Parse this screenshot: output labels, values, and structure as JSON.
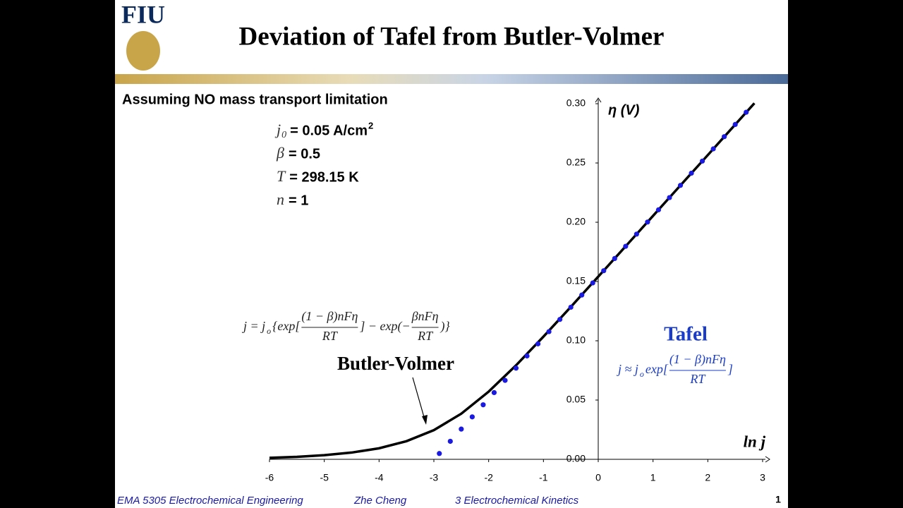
{
  "header": {
    "logo": "FIU",
    "title": "Deviation of Tafel from Butler-Volmer"
  },
  "subtitle": "Assuming NO mass transport limitation",
  "parameters": [
    {
      "symbol": "j",
      "sub": "0",
      "value": "= 0.05 A/cm",
      "sup": "2"
    },
    {
      "symbol": "β",
      "value": "= 0.5"
    },
    {
      "symbol": "T",
      "value": "= 298.15 K"
    },
    {
      "symbol": "n",
      "value": "= 1"
    }
  ],
  "chart_data": {
    "type": "line",
    "x_label": "ln j",
    "y_label": "η (V)",
    "xlim": [
      -6,
      3
    ],
    "ylim": [
      0,
      0.3
    ],
    "xticks": [
      -6,
      -5,
      -4,
      -3,
      -2,
      -1,
      0,
      1,
      2,
      3
    ],
    "yticks": [
      {
        "value": 0,
        "label": "0.00"
      },
      {
        "value": 0.05,
        "label": "0.05"
      },
      {
        "value": 0.1,
        "label": "0.10"
      },
      {
        "value": 0.15,
        "label": "0.15"
      },
      {
        "value": 0.2,
        "label": "0.20"
      },
      {
        "value": 0.25,
        "label": "0.25"
      },
      {
        "value": 0.3,
        "label": "0.30"
      }
    ],
    "series": [
      {
        "name": "Butler-Volmer",
        "color": "#000000",
        "style": "line",
        "x": [
          -6,
          -5.5,
          -5,
          -4.5,
          -4,
          -3.5,
          -3,
          -2.5,
          -2,
          -1.5,
          -1,
          -0.5,
          0,
          0.5,
          1,
          1.5,
          2,
          2.5,
          2.85
        ],
        "values": [
          0.0013,
          0.0021,
          0.0035,
          0.0057,
          0.0093,
          0.0153,
          0.0246,
          0.0385,
          0.0571,
          0.0793,
          0.1035,
          0.1286,
          0.1541,
          0.1797,
          0.2054,
          0.2311,
          0.2567,
          0.2824,
          0.3004
        ]
      },
      {
        "name": "Tafel",
        "color": "#1a1ae0",
        "style": "dots",
        "x": [
          -2.9,
          -2.7,
          -2.5,
          -2.3,
          -2.1,
          -1.9,
          -1.7,
          -1.5,
          -1.3,
          -1.1,
          -0.9,
          -0.7,
          -0.5,
          -0.3,
          -0.1,
          0.1,
          0.3,
          0.5,
          0.7,
          0.9,
          1.1,
          1.3,
          1.5,
          1.7,
          1.9,
          2.1,
          2.3,
          2.5,
          2.7
        ],
        "values": [
          0.0049,
          0.0152,
          0.0255,
          0.0358,
          0.046,
          0.0563,
          0.0666,
          0.0769,
          0.0872,
          0.0974,
          0.1077,
          0.118,
          0.1283,
          0.1386,
          0.1488,
          0.1591,
          0.1694,
          0.1797,
          0.19,
          0.2002,
          0.2105,
          0.2208,
          0.2311,
          0.2414,
          0.2516,
          0.2619,
          0.2722,
          0.2825,
          0.2928
        ]
      }
    ],
    "annotations": {
      "bv_equation": [
        "j = j",
        "o",
        "{exp[",
        "(1 − β)nFη",
        "RT",
        "] − exp(−",
        "βnFη",
        "RT",
        ")}"
      ],
      "tafel_equation": [
        "j ≈ j",
        "o",
        "exp[",
        "(1 − β)nFη",
        "RT",
        "]"
      ]
    }
  },
  "footer": {
    "course": "EMA 5305 Electrochemical Engineering",
    "author": "Zhe Cheng",
    "chapter": "3 Electrochemical Kinetics",
    "page": "1"
  }
}
